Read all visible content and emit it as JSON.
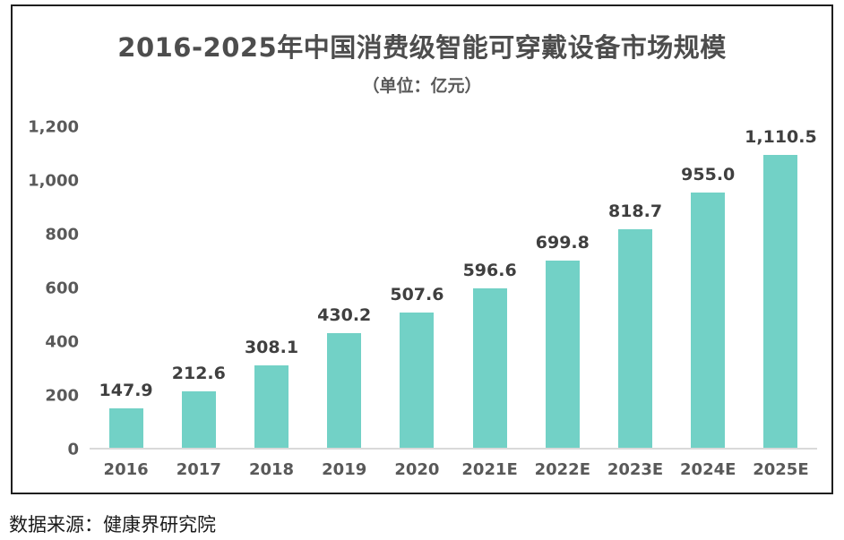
{
  "page": {
    "title": "2016-2025年中国消费级智能可穿戴设备市场规模",
    "subtitle": "（单位：亿元）",
    "source": "数据来源：健康界研究院"
  },
  "colors": {
    "bar": "#72d1c6",
    "title_text": "#4d4d4d",
    "axis_text": "#595959",
    "value_label_text": "#3f3f3f",
    "baseline": "#d9d9d9",
    "frame_border": "#1f1f1f"
  },
  "chart_data": {
    "type": "bar",
    "title": "2016-2025年中国消费级智能可穿戴设备市场规模",
    "subtitle": "（单位：亿元）",
    "unit": "亿元",
    "categories": [
      "2016",
      "2017",
      "2018",
      "2019",
      "2020",
      "2021E",
      "2022E",
      "2023E",
      "2024E",
      "2025E"
    ],
    "values": [
      147.9,
      212.6,
      308.1,
      430.2,
      507.6,
      596.6,
      699.8,
      818.7,
      955.0,
      1110.5
    ],
    "value_labels": [
      "147.9",
      "212.6",
      "308.1",
      "430.2",
      "507.6",
      "596.6",
      "699.8",
      "818.7",
      "955.0",
      "1,110.5"
    ],
    "xlabel": "",
    "ylabel": "",
    "ylim": [
      0,
      1200
    ],
    "y_ticks": [
      {
        "value": 0,
        "label": "0"
      },
      {
        "value": 200,
        "label": "200"
      },
      {
        "value": 400,
        "label": "400"
      },
      {
        "value": 600,
        "label": "600"
      },
      {
        "value": 800,
        "label": "800"
      },
      {
        "value": 1000,
        "label": "1,000"
      },
      {
        "value": 1200,
        "label": "1,200"
      }
    ],
    "grid": false,
    "legend_position": "none",
    "source": "数据来源：健康界研究院"
  }
}
